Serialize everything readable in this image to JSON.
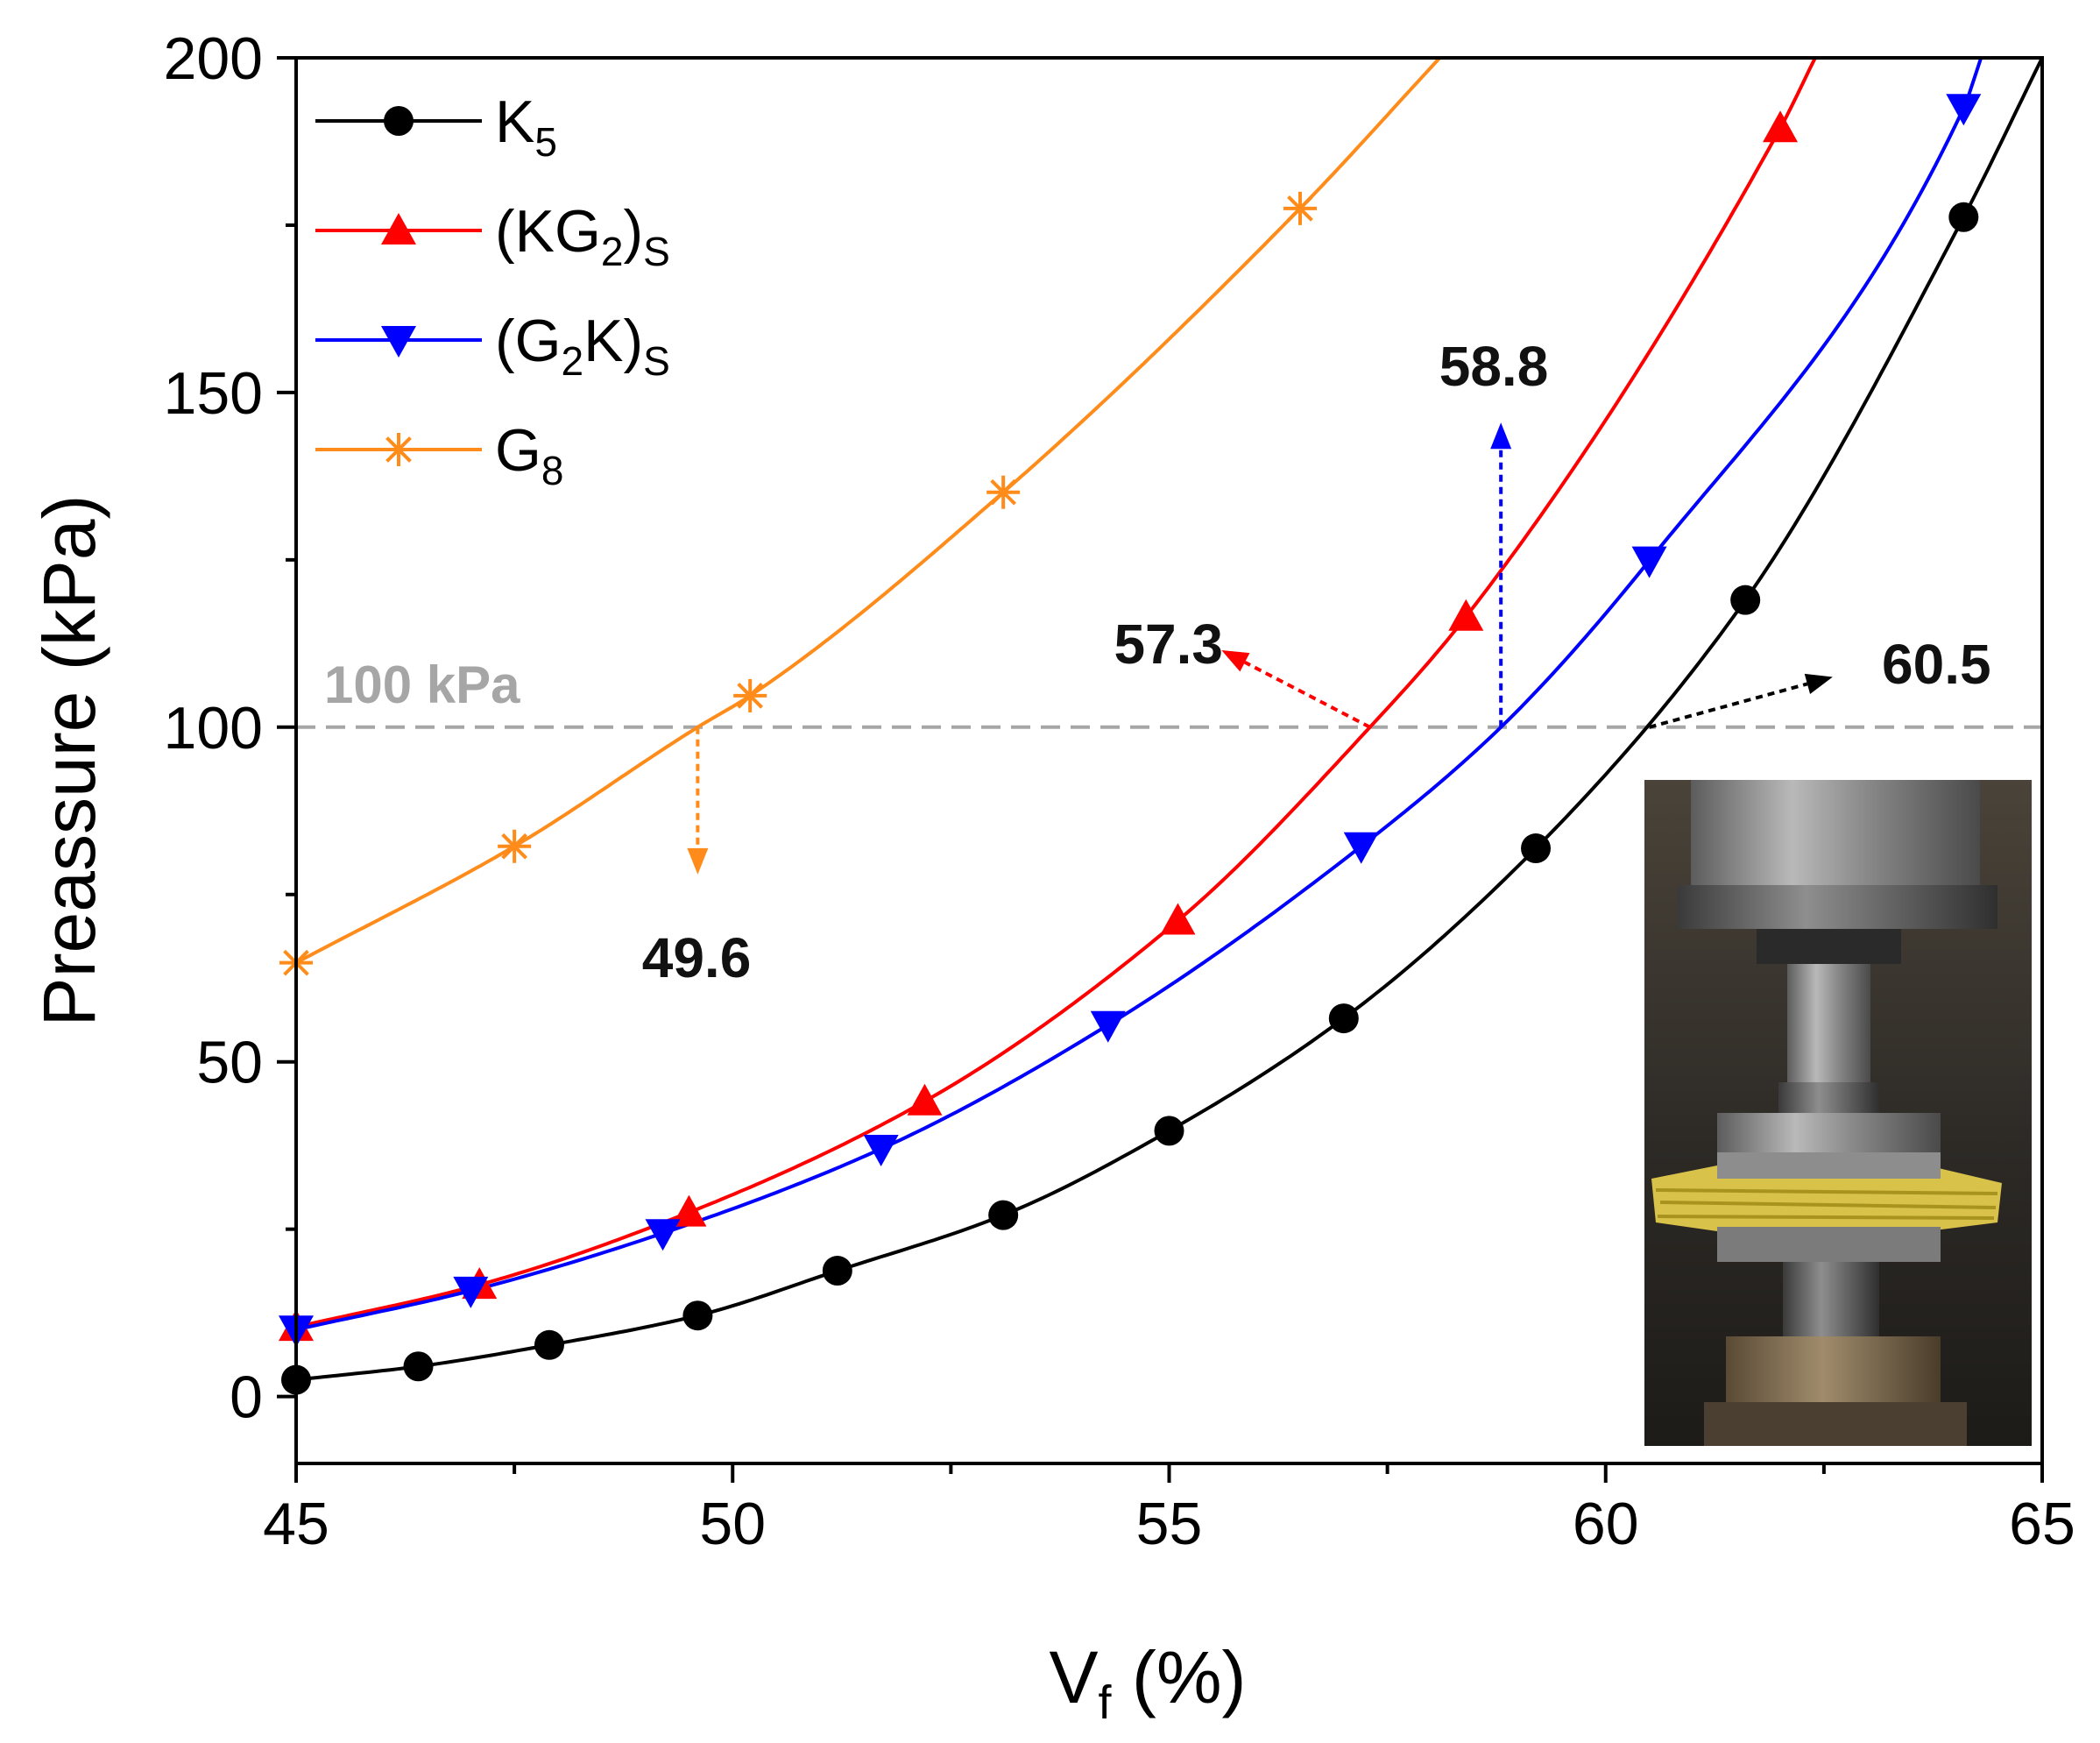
{
  "chart_data": {
    "type": "line",
    "title": "",
    "xlabel": "V",
    "xlabel_sub": "f",
    "xlabel_unit": " (%)",
    "ylabel": "Preassure (kPa)",
    "xlim": [
      45,
      65
    ],
    "ylim": [
      -10,
      200
    ],
    "xticks": [
      45,
      50,
      55,
      60,
      65
    ],
    "yticks": [
      0,
      50,
      100,
      150,
      200
    ],
    "legend_position": "top-left",
    "series": [
      {
        "name": "K5",
        "label_main": "K",
        "label_sub": "5",
        "label_suffix": "",
        "sub_of_suffix": "",
        "color": "#000000",
        "marker": "circle",
        "x": [
          45,
          46.4,
          47.9,
          49.6,
          51.2,
          53.1,
          55.0,
          57.0,
          59.2,
          61.6,
          64.1,
          65.0
        ],
        "y": [
          2.5,
          4.5,
          7.7,
          12.1,
          18.8,
          27.1,
          39.7,
          56.5,
          81.9,
          119.0,
          176.2,
          200.0
        ],
        "marker_x": [
          45,
          46.4,
          47.9,
          49.6,
          51.2,
          53.1,
          55.0,
          57.0,
          59.2,
          61.6,
          64.1
        ]
      },
      {
        "name": "(KG2)S",
        "label_main": "(KG",
        "label_sub": "2",
        "label_suffix": ")",
        "sub_of_suffix": "S",
        "color": "#ff0000",
        "marker": "triangle-up",
        "x": [
          45,
          47.1,
          49.5,
          52.2,
          55.1,
          57.3,
          58.4,
          62.0,
          62.4
        ],
        "y": [
          10.4,
          16.7,
          27.5,
          44.1,
          71.1,
          100.0,
          116.5,
          189.5,
          200.0
        ],
        "marker_x": [
          45,
          47.1,
          49.5,
          52.2,
          55.1,
          58.4,
          62.0
        ]
      },
      {
        "name": "(G2K)S",
        "label_main": "(G",
        "label_sub": "2",
        "label_suffix": "K)",
        "sub_of_suffix": "S",
        "color": "#0000ff",
        "marker": "triangle-down",
        "x": [
          45,
          47.0,
          49.2,
          51.7,
          54.3,
          57.2,
          58.8,
          60.5,
          64.1,
          64.3
        ],
        "y": [
          10.0,
          15.8,
          24.4,
          37.0,
          55.5,
          82.2,
          100.0,
          124.9,
          192.5,
          200.0
        ],
        "marker_x": [
          45,
          47.0,
          49.2,
          51.7,
          54.3,
          57.2,
          60.5,
          64.1
        ]
      },
      {
        "name": "G8",
        "label_main": "G",
        "label_sub": "8",
        "label_suffix": "",
        "sub_of_suffix": "",
        "color": "#ff8c1a",
        "marker": "asterisk",
        "x": [
          45,
          47.5,
          49.6,
          50.2,
          53.1,
          56.5,
          58.1
        ],
        "y": [
          64.8,
          82.2,
          100.0,
          104.7,
          135.1,
          177.5,
          200.0
        ],
        "marker_x": [
          45,
          47.5,
          50.2,
          53.1,
          56.5
        ]
      }
    ],
    "reference_line": {
      "y": 100,
      "label": "100 kPa",
      "color": "#a6a6a6"
    },
    "annotations": [
      {
        "text": "49.6",
        "from": [
          49.6,
          100
        ],
        "to": [
          49.6,
          78
        ],
        "color": "#ff8c1a"
      },
      {
        "text": "57.3",
        "from": [
          57.3,
          100
        ],
        "to": [
          55.6,
          111.5
        ],
        "color": "#ff0000"
      },
      {
        "text": "58.8",
        "from": [
          58.8,
          100
        ],
        "to": [
          58.8,
          145.5
        ],
        "color": "#0000ff"
      },
      {
        "text": "60.5",
        "from": [
          60.5,
          100
        ],
        "to": [
          62.6,
          107.5
        ],
        "color": "#000000"
      }
    ],
    "inset": {
      "description": "photograph of compression test fixture with yellow fabric stack"
    }
  }
}
